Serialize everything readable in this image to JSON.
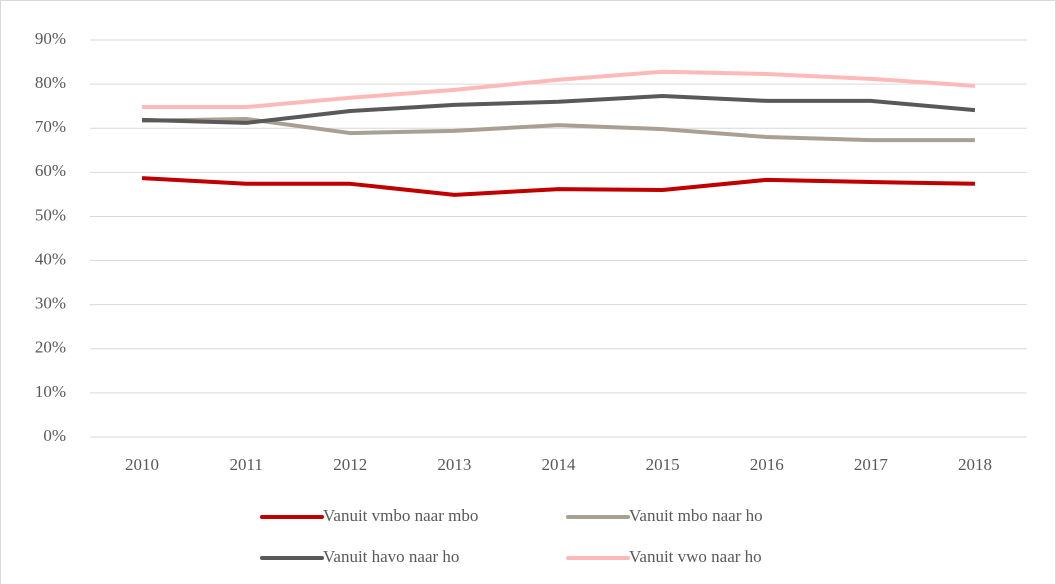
{
  "chart_data": {
    "type": "line",
    "categories": [
      "2010",
      "2011",
      "2012",
      "2013",
      "2014",
      "2015",
      "2016",
      "2017",
      "2018"
    ],
    "series": [
      {
        "name": "Vanuit vmbo naar mbo",
        "color": "#c00000",
        "values": [
          58.7,
          57.4,
          57.4,
          54.9,
          56.2,
          56.0,
          58.3,
          57.8,
          57.4
        ]
      },
      {
        "name": "Vanuit mbo naar ho",
        "color": "#a9a091",
        "values": [
          71.7,
          72.1,
          68.9,
          69.4,
          70.7,
          69.8,
          68.0,
          67.3,
          67.3
        ]
      },
      {
        "name": "Vanuit havo naar ho",
        "color": "#595959",
        "values": [
          71.9,
          71.2,
          73.9,
          75.3,
          76.0,
          77.3,
          76.2,
          76.2,
          74.1
        ]
      },
      {
        "name": "Vanuit vwo naar ho",
        "color": "#ffb9b9",
        "values": [
          74.8,
          74.8,
          76.9,
          78.7,
          81.0,
          82.8,
          82.3,
          81.2,
          79.6
        ]
      }
    ],
    "ylim": [
      0,
      90
    ],
    "yticks": [
      {
        "value": 0,
        "label": "0%"
      },
      {
        "value": 10,
        "label": "10%"
      },
      {
        "value": 20,
        "label": "20%"
      },
      {
        "value": 30,
        "label": "30%"
      },
      {
        "value": 40,
        "label": "40%"
      },
      {
        "value": 50,
        "label": "50%"
      },
      {
        "value": 60,
        "label": "60%"
      },
      {
        "value": 70,
        "label": "70%"
      },
      {
        "value": 80,
        "label": "80%"
      },
      {
        "value": 90,
        "label": "90%"
      }
    ],
    "grid": true,
    "legend": "bottom"
  }
}
